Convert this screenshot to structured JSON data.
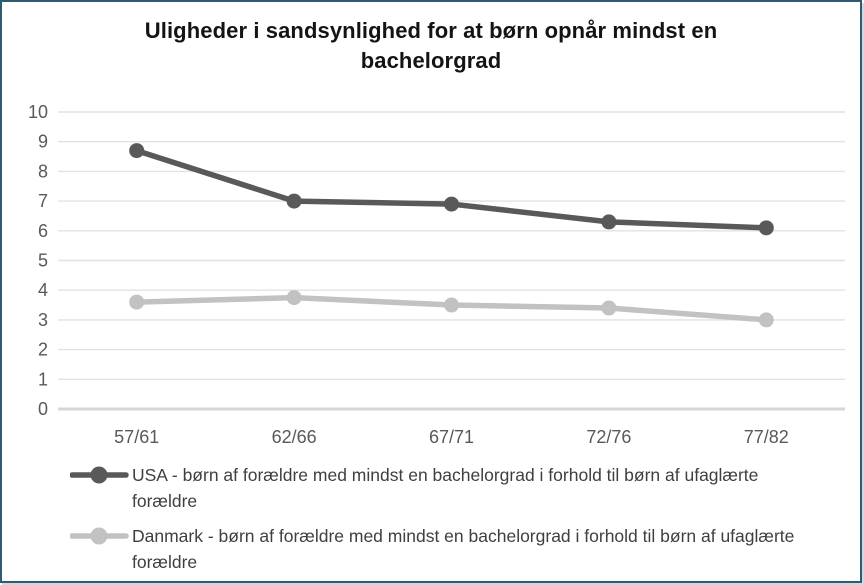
{
  "chart_data": {
    "type": "line",
    "title": "Uligheder i sandsynlighed for at børn opnår mindst en bachelorgrad",
    "categories": [
      "57/61",
      "62/66",
      "67/71",
      "72/76",
      "77/82"
    ],
    "series": [
      {
        "name": "USA - børn af forældre med mindst en bachelorgrad i forhold til børn af ufaglærte forældre",
        "color": "#595959",
        "values": [
          8.7,
          7.0,
          6.9,
          6.3,
          6.1
        ]
      },
      {
        "name": "Danmark - børn af forældre med mindst en bachelorgrad i forhold til børn af ufaglærte forældre",
        "color": "#c2c2c2",
        "values": [
          3.6,
          3.75,
          3.5,
          3.4,
          3.0
        ]
      }
    ],
    "yticks": [
      10,
      9,
      8,
      7,
      6,
      5,
      4,
      3,
      2,
      1,
      0
    ],
    "ylim": [
      0,
      10
    ],
    "xlabel": "",
    "ylabel": "",
    "grid": true,
    "legend_position": "bottom"
  },
  "colors": {
    "frame_border": "#2f5a70",
    "gridline": "#e2e2e2",
    "axis_zero_line": "#d6d6d6",
    "tick_label": "#595959",
    "legend_text": "#3f3f3f",
    "title_text": "#141414",
    "background": "#ffffff"
  }
}
